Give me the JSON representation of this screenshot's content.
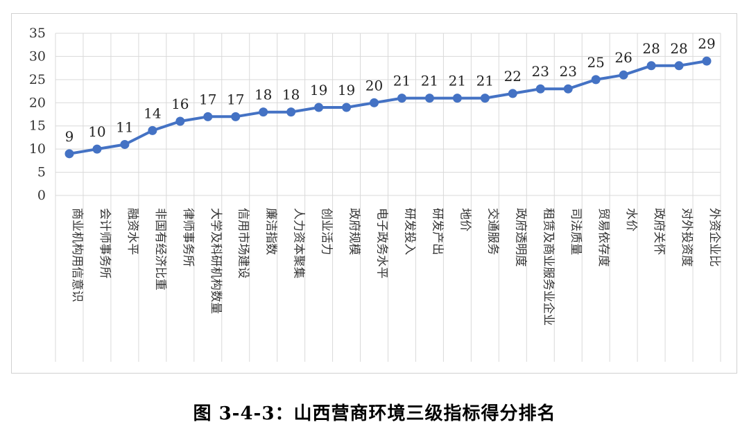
{
  "chart_data": {
    "type": "line",
    "categories": [
      "商业机构用信意识",
      "会计师事务所",
      "融资水平",
      "非国有经济比重",
      "律师事务所",
      "大学及科研机构数量",
      "信用市场建设",
      "廉洁指数",
      "人力资本聚集",
      "创业活力",
      "政府规模",
      "电子政务水平",
      "研发投入",
      "研发产出",
      "地价",
      "交通服务",
      "政府透明度",
      "租赁及商业服务业企业",
      "司法质量",
      "贸易依存度",
      "水价",
      "政府关怀",
      "对外投资度",
      "外资企业比"
    ],
    "values": [
      9,
      10,
      11,
      14,
      16,
      17,
      17,
      18,
      18,
      19,
      19,
      20,
      21,
      21,
      21,
      21,
      22,
      23,
      23,
      25,
      26,
      28,
      28,
      29
    ],
    "yticks": [
      "0",
      "5",
      "10",
      "15",
      "20",
      "25",
      "30",
      "35"
    ],
    "ylim": [
      0,
      35
    ],
    "grid": true,
    "series_color": "#4472C4"
  },
  "caption": "图 3-4-3：山西营商环境三级指标得分排名"
}
